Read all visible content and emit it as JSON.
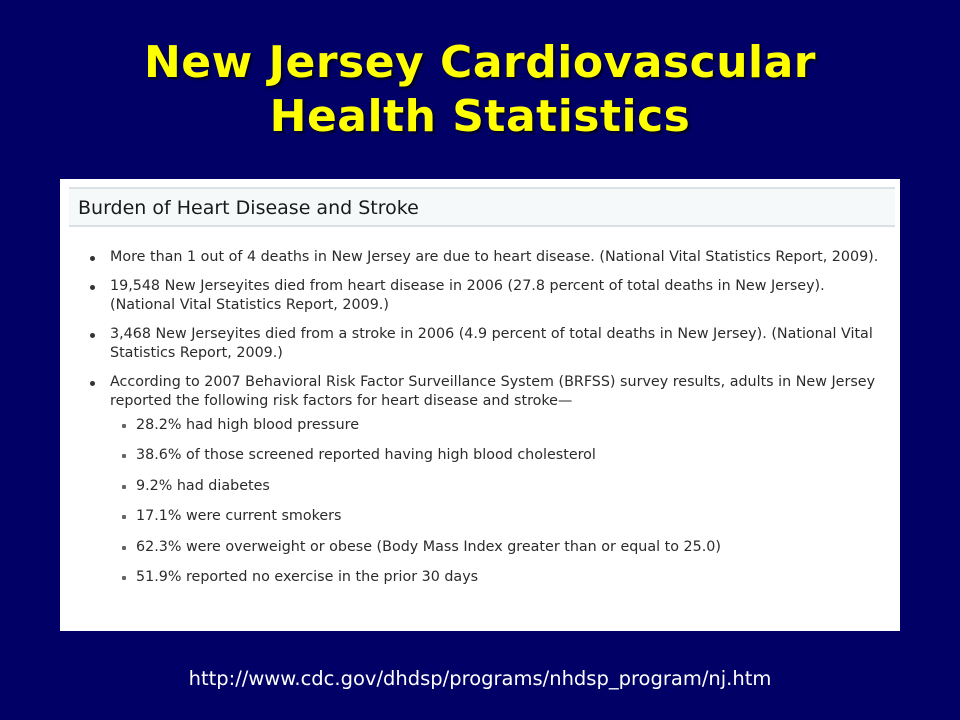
{
  "slide": {
    "title_lines": [
      "New Jersey Cardiovascular",
      "Health Statistics"
    ],
    "background_color": "#000066",
    "title_color": "#FFFF00"
  },
  "panel": {
    "header": "Burden of Heart Disease and Stroke",
    "bullets": [
      "More than 1 out of 4 deaths in New Jersey are due to heart disease. (National Vital Statistics Report, 2009).",
      "19,548 New Jerseyites died from heart disease in 2006 (27.8 percent of total deaths in New Jersey). (National Vital Statistics Report, 2009.)",
      "3,468 New Jerseyites died from a stroke in 2006 (4.9 percent of total deaths in New Jersey). (National Vital Statistics Report, 2009.)",
      "According to 2007 Behavioral Risk Factor Surveillance System (BRFSS) survey results, adults in New Jersey reported the following risk factors for heart disease and stroke—"
    ],
    "risk_factors": [
      "28.2% had high blood pressure",
      "38.6% of those screened reported having high blood cholesterol",
      "9.2% had diabetes",
      "17.1% were current smokers",
      "62.3% were overweight or obese (Body Mass Index greater than or equal to 25.0)",
      "51.9% reported no exercise in the prior 30 days"
    ]
  },
  "footer": {
    "source_url": "http://www.cdc.gov/dhdsp/programs/nhdsp_program/nj.htm"
  }
}
